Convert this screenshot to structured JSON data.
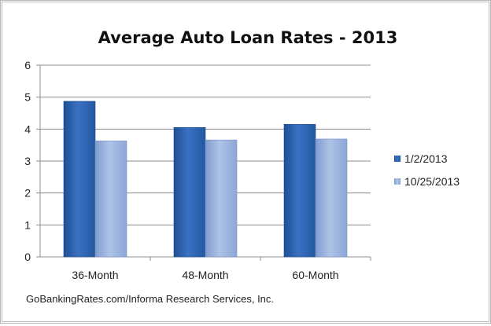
{
  "chart_data": {
    "type": "bar",
    "title": "Average Auto Loan Rates - 2013",
    "categories": [
      "36-Month",
      "48-Month",
      "60-Month"
    ],
    "series": [
      {
        "name": "1/2/2013",
        "values": [
          4.87,
          4.05,
          4.15
        ],
        "color": "#2f64b4"
      },
      {
        "name": "10/25/2013",
        "values": [
          3.63,
          3.66,
          3.69
        ],
        "color": "#9db5df"
      }
    ],
    "ylim": [
      0,
      6
    ],
    "yticks": [
      0,
      1,
      2,
      3,
      4,
      5,
      6
    ],
    "xlabel": "",
    "ylabel": "",
    "grid": true,
    "legend": "right"
  },
  "source": "GoBankingRates.com/Informa Research Services, Inc."
}
